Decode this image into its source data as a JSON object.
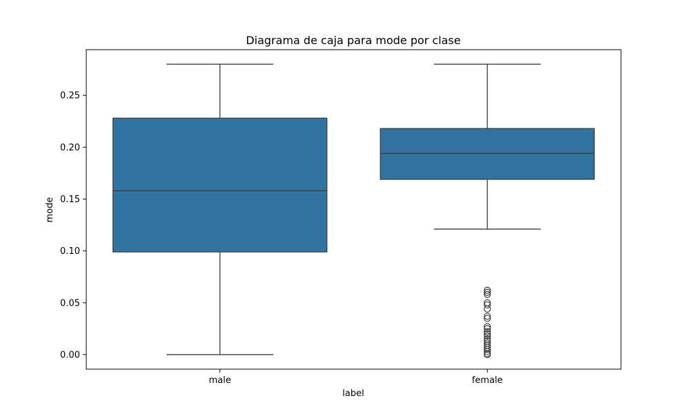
{
  "chart_data": {
    "type": "box",
    "title": "Diagrama de caja para mode por clase",
    "xlabel": "label",
    "ylabel": "mode",
    "categories": [
      "male",
      "female"
    ],
    "ylim": [
      -0.014,
      0.294
    ],
    "yticks": [
      0.0,
      0.05,
      0.1,
      0.15,
      0.2,
      0.25
    ],
    "ytick_labels": [
      "0.00",
      "0.05",
      "0.10",
      "0.15",
      "0.20",
      "0.25"
    ],
    "grid": false,
    "box_color": "#3274a1",
    "line_color": "#3d3d3d",
    "boxes": [
      {
        "category": "male",
        "whisker_low": 0.0,
        "q1": 0.099,
        "median": 0.158,
        "q3": 0.228,
        "whisker_high": 0.28,
        "outliers": []
      },
      {
        "category": "female",
        "whisker_low": 0.121,
        "q1": 0.169,
        "median": 0.194,
        "q3": 0.218,
        "whisker_high": 0.28,
        "outliers": [
          0.0,
          0.001,
          0.003,
          0.005,
          0.007,
          0.009,
          0.011,
          0.013,
          0.015,
          0.018,
          0.02,
          0.022,
          0.025,
          0.027,
          0.035,
          0.037,
          0.044,
          0.048,
          0.05,
          0.058,
          0.06,
          0.062
        ]
      }
    ]
  }
}
